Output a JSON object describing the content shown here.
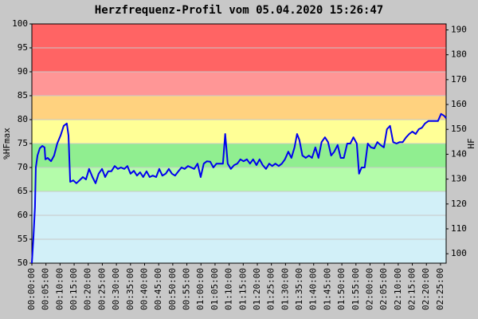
{
  "chart_data": {
    "type": "line",
    "title": "Herzfrequenz-Profil vom 05.04.2020 15:26:47",
    "ylabel": "%HFmax",
    "y2label": "HF",
    "x": [
      0,
      0.6,
      1.1,
      1.4,
      2,
      2.8,
      3.7,
      4.5,
      4.8,
      5.6,
      6.8,
      7.9,
      9,
      10.2,
      11.3,
      12.4,
      13,
      13.6,
      14.7,
      15.8,
      16.9,
      18.1,
      19.2,
      20.3,
      21.5,
      22.6,
      23.7,
      24.9,
      26,
      27.1,
      28.2,
      29.4,
      30.5,
      31.6,
      32.8,
      33.9,
      35,
      36.2,
      37.3,
      38.4,
      39.5,
      40.7,
      41.8,
      42.9,
      44.1,
      45.2,
      46.3,
      47.5,
      48.6,
      49.7,
      50.8,
      52,
      53.1,
      54.2,
      55.4,
      56.5,
      57.6,
      58.8,
      59.9,
      61,
      62.1,
      63.3,
      64.4,
      65.5,
      66.7,
      67.8,
      68.6,
      69.5,
      70.6,
      71.8,
      72.9,
      74,
      75.1,
      76.3,
      77.4,
      78.5,
      79.7,
      80.8,
      81.9,
      83.1,
      84.2,
      85.3,
      86.4,
      87.6,
      88.7,
      89.8,
      91,
      92.1,
      93.2,
      94.1,
      94.9,
      96,
      97.2,
      98.3,
      99.4,
      100.6,
      101.7,
      102.8,
      104,
      105.1,
      106.2,
      107.3,
      108.5,
      109.6,
      110.7,
      111.9,
      113,
      114.1,
      115.3,
      116.1,
      117,
      118.1,
      119.2,
      120.3,
      121.5,
      122.6,
      123.7,
      124.9,
      126,
      127.1,
      128.2,
      129.4,
      130.5,
      131.6,
      132.8,
      133.9,
      135,
      136.2,
      137.3,
      138.4,
      139.5,
      140.7,
      141.8,
      142.9,
      144.1,
      145.2,
      146.3,
      147
    ],
    "series": [
      {
        "color": "#0000ee",
        "values": [
          50,
          55.8,
          61.7,
          70,
          72.5,
          74,
          74.5,
          74.2,
          71.7,
          72,
          71.3,
          72.5,
          75,
          76.7,
          78.7,
          79.2,
          76.7,
          67,
          67.3,
          66.7,
          67.3,
          68,
          67.5,
          69.7,
          68,
          66.7,
          68.7,
          69.7,
          68,
          69.2,
          69.2,
          70.3,
          69.7,
          70,
          69.7,
          70.3,
          68.7,
          69.3,
          68.3,
          69,
          68,
          69.2,
          68,
          68.3,
          68,
          69.7,
          68.3,
          68.7,
          69.7,
          68.7,
          68.3,
          69.2,
          70,
          69.7,
          70.3,
          70,
          69.7,
          70.8,
          68,
          70.8,
          71.3,
          71.2,
          70,
          70.8,
          70.8,
          70.8,
          77,
          70.8,
          69.7,
          70.5,
          70.8,
          71.7,
          71.3,
          71.7,
          70.8,
          71.7,
          70.5,
          71.7,
          70.5,
          69.7,
          70.8,
          70.3,
          70.8,
          70.3,
          70.8,
          71.7,
          73.3,
          72,
          74.2,
          77,
          75.8,
          72.5,
          72,
          72.5,
          72,
          74.2,
          72,
          75.3,
          76.3,
          75.3,
          72.5,
          73.3,
          74.7,
          72,
          72,
          75,
          75,
          76.3,
          75,
          68.7,
          70,
          70,
          75,
          74.2,
          74,
          75.3,
          74.7,
          74.2,
          78,
          78.7,
          75.3,
          75,
          75.3,
          75.3,
          76.3,
          77,
          77.5,
          77,
          78,
          78.3,
          79.2,
          79.7,
          79.7,
          79.7,
          79.7,
          81.2,
          80.8,
          80.3
        ]
      }
    ],
    "zones": [
      {
        "from": 50,
        "to": 65,
        "color": "#d2f0f8"
      },
      {
        "from": 65,
        "to": 70,
        "color": "#b4fcaa"
      },
      {
        "from": 70,
        "to": 75,
        "color": "#90ee90"
      },
      {
        "from": 75,
        "to": 80,
        "color": "#ffff96"
      },
      {
        "from": 80,
        "to": 85,
        "color": "#ffd27f"
      },
      {
        "from": 85,
        "to": 90,
        "color": "#ff9696"
      },
      {
        "from": 90,
        "to": 100,
        "color": "#ff6464"
      }
    ],
    "xlim": [
      0,
      147
    ],
    "xticks": [
      {
        "value": 0,
        "label": "00:00:00"
      },
      {
        "value": 5,
        "label": "00:05:00"
      },
      {
        "value": 10,
        "label": "00:10:00"
      },
      {
        "value": 15,
        "label": "00:15:00"
      },
      {
        "value": 20,
        "label": "00:20:00"
      },
      {
        "value": 25,
        "label": "00:25:00"
      },
      {
        "value": 30,
        "label": "00:30:00"
      },
      {
        "value": 35,
        "label": "00:35:00"
      },
      {
        "value": 40,
        "label": "00:40:00"
      },
      {
        "value": 45,
        "label": "00:45:00"
      },
      {
        "value": 50,
        "label": "00:50:00"
      },
      {
        "value": 55,
        "label": "00:55:00"
      },
      {
        "value": 60,
        "label": "01:00:00"
      },
      {
        "value": 65,
        "label": "01:05:00"
      },
      {
        "value": 70,
        "label": "01:10:00"
      },
      {
        "value": 75,
        "label": "01:15:00"
      },
      {
        "value": 80,
        "label": "01:20:00"
      },
      {
        "value": 85,
        "label": "01:25:00"
      },
      {
        "value": 90,
        "label": "01:30:00"
      },
      {
        "value": 95,
        "label": "01:35:00"
      },
      {
        "value": 100,
        "label": "01:40:00"
      },
      {
        "value": 105,
        "label": "01:45:00"
      },
      {
        "value": 110,
        "label": "01:50:00"
      },
      {
        "value": 115,
        "label": "01:55:00"
      },
      {
        "value": 120,
        "label": "02:00:00"
      },
      {
        "value": 125,
        "label": "02:05:00"
      },
      {
        "value": 130,
        "label": "02:10:00"
      },
      {
        "value": 135,
        "label": "02:15:00"
      },
      {
        "value": 140,
        "label": "02:20:00"
      },
      {
        "value": 145,
        "label": "02:25:00"
      }
    ],
    "ylim": [
      50,
      100
    ],
    "yticks": [
      50,
      55,
      60,
      65,
      70,
      75,
      80,
      85,
      90,
      95,
      100
    ],
    "y2lim": [
      96.2,
      192.4
    ],
    "y2ticks": [
      100,
      110,
      120,
      130,
      140,
      150,
      160,
      170,
      180,
      190
    ],
    "grid": true
  }
}
